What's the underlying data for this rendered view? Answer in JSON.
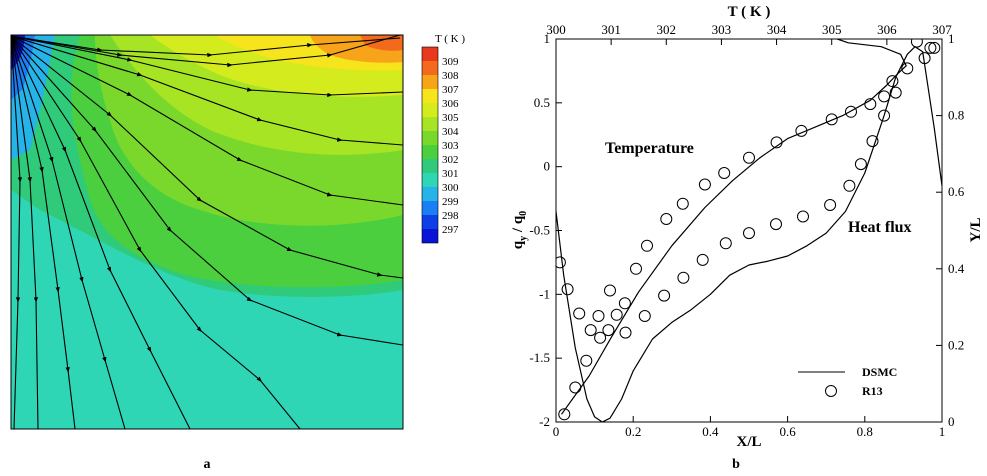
{
  "chart_data": [
    {
      "type": "heatmap",
      "panel_label": "a",
      "colorbar": {
        "title": "T ( K )",
        "ticks": [
          309,
          308,
          307,
          306,
          305,
          304,
          303,
          302,
          301,
          300,
          299,
          298,
          297
        ],
        "colors": [
          "#e8381e",
          "#f26a1c",
          "#f8a41a",
          "#f6e41c",
          "#d4ec1e",
          "#a6e424",
          "#7ad82c",
          "#4ccf3e",
          "#2fcb7a",
          "#2fd6b6",
          "#26b4e8",
          "#1a7ff2",
          "#0e3fe6",
          "#0a14d6"
        ]
      }
    },
    {
      "type": "line",
      "panel_label": "b",
      "xlabel": "X/L",
      "ylabel": "q_y / q_0",
      "ylabel_main": "q",
      "ylabel_sub": "y",
      "ylabel_rest": " / q",
      "ylabel_sub0": "0",
      "x2label": "T ( K )",
      "y2label": "Y/L",
      "xlim": [
        0,
        1
      ],
      "ylim": [
        -2,
        1
      ],
      "x2lim": [
        300,
        307
      ],
      "y2lim": [
        0,
        1
      ],
      "xticks": [
        0,
        0.2,
        0.4,
        0.6,
        0.8,
        1
      ],
      "yticks": [
        -2,
        -1.5,
        -1,
        -0.5,
        0,
        0.5,
        1
      ],
      "x2ticks": [
        300,
        301,
        302,
        303,
        304,
        305,
        306,
        307
      ],
      "y2ticks": [
        0,
        0.2,
        0.4,
        0.6,
        0.8,
        1
      ],
      "annotations": [
        "Temperature",
        "Heat flux"
      ],
      "legend": {
        "position": "bottom-right",
        "entries": [
          "DSMC",
          "R13"
        ]
      },
      "series": [
        {
          "name": "DSMC",
          "curve": "heat-flux",
          "axes": "X/L vs q_y/q_0",
          "x": [
            0.0,
            0.02,
            0.05,
            0.08,
            0.1,
            0.12,
            0.14,
            0.17,
            0.2,
            0.25,
            0.3,
            0.35,
            0.4,
            0.45,
            0.5,
            0.55,
            0.6,
            0.65,
            0.7,
            0.75,
            0.8,
            0.85,
            0.88,
            0.91,
            0.93,
            0.95,
            0.98,
            1.0
          ],
          "y": [
            -0.35,
            -0.85,
            -1.42,
            -1.82,
            -1.96,
            -2.0,
            -1.97,
            -1.82,
            -1.6,
            -1.35,
            -1.22,
            -1.12,
            -1.0,
            -0.85,
            -0.77,
            -0.74,
            -0.7,
            -0.62,
            -0.52,
            -0.35,
            -0.05,
            0.4,
            0.7,
            0.88,
            0.94,
            0.9,
            0.3,
            -0.15
          ]
        },
        {
          "name": "DSMC",
          "curve": "temperature",
          "axes": "T (K) vs Y/L",
          "x": [
            300.1,
            300.3,
            300.6,
            301.0,
            301.5,
            302.1,
            302.7,
            303.2,
            303.7,
            304.2,
            304.7,
            305.2,
            305.7,
            306.0,
            306.2,
            306.35,
            306.25,
            305.9,
            305.3,
            305.1
          ],
          "y": [
            0.02,
            0.06,
            0.12,
            0.22,
            0.34,
            0.46,
            0.56,
            0.63,
            0.69,
            0.74,
            0.77,
            0.8,
            0.84,
            0.88,
            0.91,
            0.93,
            0.96,
            0.98,
            0.99,
            1.0
          ]
        },
        {
          "name": "R13",
          "curve": "heat-flux",
          "axes": "X/L vs q_y/q_0",
          "x": [
            0.01,
            0.03,
            0.06,
            0.09,
            0.11,
            0.14,
            0.18,
            0.23,
            0.28,
            0.33,
            0.38,
            0.44,
            0.5,
            0.57,
            0.64,
            0.71,
            0.76,
            0.79,
            0.82,
            0.85,
            0.88,
            0.91,
            0.935,
            0.955,
            0.97,
            0.98
          ],
          "y": [
            -0.75,
            -0.96,
            -1.15,
            -1.28,
            -1.17,
            -0.97,
            -1.3,
            -1.17,
            -1.01,
            -0.87,
            -0.73,
            -0.6,
            -0.52,
            -0.45,
            -0.39,
            -0.3,
            -0.15,
            0.02,
            0.2,
            0.4,
            0.58,
            0.77,
            0.98,
            0.85,
            0.93,
            0.93
          ]
        },
        {
          "name": "R13",
          "curve": "temperature",
          "axes": "T (K) vs Y/L",
          "x": [
            300.15,
            300.35,
            300.55,
            300.8,
            300.95,
            301.1,
            301.25,
            301.45,
            301.65,
            302.0,
            302.3,
            302.7,
            303.05,
            303.5,
            304.0,
            304.45,
            305.0,
            305.35,
            305.7,
            305.95,
            306.1
          ],
          "y": [
            0.02,
            0.09,
            0.16,
            0.22,
            0.24,
            0.28,
            0.31,
            0.4,
            0.46,
            0.53,
            0.57,
            0.62,
            0.65,
            0.69,
            0.73,
            0.76,
            0.79,
            0.81,
            0.83,
            0.85,
            0.89
          ]
        }
      ]
    }
  ]
}
